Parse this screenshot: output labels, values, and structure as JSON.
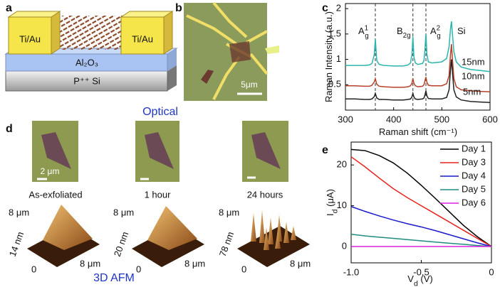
{
  "panel_labels": [
    "a",
    "b",
    "c",
    "d",
    "e"
  ],
  "schematic": {
    "contact_left": "Ti/Au",
    "contact_right": "Ti/Au",
    "dielectric": "Al₂O₃",
    "substrate": "P⁺⁺ Si"
  },
  "optical_image": {
    "scale_bar": "5μm"
  },
  "aging": {
    "top_title": "Optical",
    "scale_bar": "2 μm",
    "times": [
      "As-exfoliated",
      "1 hour",
      "24 hours"
    ],
    "afm_height": [
      "14 nm",
      "20 nm",
      "78 nm"
    ],
    "afm_size": "8 μm",
    "afm_origin": "0",
    "bottom_title": "3D AFM"
  },
  "chart_data": [
    {
      "type": "line",
      "legend": "inline",
      "xlabel": {
        "text": "Raman shift (cm⁻¹)"
      },
      "ylabel": {
        "text": "Raman Intensity (a.u.)"
      },
      "xlim": [
        300,
        600
      ],
      "xticks": [
        300,
        400,
        500,
        600
      ],
      "ylim": [
        0,
        2.1
      ],
      "yticks": [
        0.5,
        1,
        1.5,
        2
      ],
      "reference_lines": [
        362,
        440,
        467
      ],
      "peak_labels": [
        {
          "text": "A",
          "sup": "1",
          "sub": "g"
        },
        {
          "text": "B",
          "sub": "2g"
        },
        {
          "text": "A",
          "sup": "2",
          "sub": "g"
        },
        {
          "text": "Si"
        }
      ],
      "x": [
        300,
        320,
        340,
        350,
        355,
        360,
        362,
        365,
        370,
        380,
        400,
        420,
        430,
        435,
        438,
        440,
        442,
        445,
        450,
        460,
        463,
        465,
        467,
        469,
        472,
        480,
        500,
        510,
        515,
        518,
        520,
        522,
        525,
        530,
        540,
        560,
        580,
        600
      ],
      "series": [
        {
          "name": "15nm",
          "color": "#2bb5ae",
          "values": [
            0.88,
            0.88,
            0.88,
            0.89,
            0.92,
            1.1,
            1.4,
            0.98,
            0.9,
            0.88,
            0.87,
            0.87,
            0.89,
            0.93,
            1.1,
            1.45,
            1.05,
            0.93,
            0.9,
            0.92,
            0.98,
            1.2,
            1.5,
            1.1,
            0.95,
            0.93,
            0.95,
            1.02,
            1.25,
            1.6,
            1.75,
            1.5,
            1.15,
            0.95,
            0.85,
            0.8,
            0.78,
            0.76
          ]
        },
        {
          "name": "10nm",
          "color": "#b5412a",
          "values": [
            0.48,
            0.48,
            0.47,
            0.47,
            0.49,
            0.56,
            0.62,
            0.51,
            0.47,
            0.46,
            0.45,
            0.45,
            0.46,
            0.48,
            0.53,
            0.62,
            0.53,
            0.48,
            0.46,
            0.47,
            0.5,
            0.58,
            0.65,
            0.55,
            0.49,
            0.48,
            0.48,
            0.52,
            0.68,
            1.1,
            1.3,
            1.0,
            0.62,
            0.46,
            0.4,
            0.38,
            0.37,
            0.36
          ]
        },
        {
          "name": "5nm",
          "color": "#222222",
          "values": [
            0.22,
            0.22,
            0.21,
            0.21,
            0.22,
            0.27,
            0.33,
            0.24,
            0.21,
            0.21,
            0.2,
            0.2,
            0.21,
            0.22,
            0.26,
            0.33,
            0.26,
            0.22,
            0.21,
            0.22,
            0.24,
            0.3,
            0.38,
            0.28,
            0.23,
            0.22,
            0.22,
            0.25,
            0.4,
            0.8,
            1.0,
            0.75,
            0.4,
            0.26,
            0.2,
            0.17,
            0.16,
            0.15
          ]
        }
      ]
    },
    {
      "type": "line",
      "legend": "upper right",
      "xlabel": {
        "text": "V",
        "sub": "d",
        "rest": " (V)"
      },
      "ylabel": {
        "text": "I",
        "sub": "d",
        "rest": " (μA)"
      },
      "xlim": [
        -1,
        0
      ],
      "xticks": [
        {
          "value": -1,
          "label": "-1.0"
        },
        -0.5,
        0
      ],
      "ylim": [
        -4,
        25.6
      ],
      "yticks": [
        0,
        10,
        20
      ],
      "x": [
        -1,
        -0.9,
        -0.8,
        -0.7,
        -0.6,
        -0.5,
        -0.4,
        -0.3,
        -0.2,
        -0.1,
        0
      ],
      "series": [
        {
          "name": "Day 1",
          "color": "#000000",
          "values": [
            23.8,
            23.5,
            22.3,
            20.5,
            18,
            15,
            11.8,
            8.5,
            5.2,
            2.4,
            0
          ]
        },
        {
          "name": "Day 3",
          "color": "#e8231f",
          "values": [
            22,
            19.5,
            16.8,
            14.2,
            12,
            10,
            8,
            6,
            4,
            2,
            0
          ]
        },
        {
          "name": "Day 4",
          "color": "#1a1acc",
          "values": [
            9.8,
            8.6,
            7.5,
            6.5,
            5.6,
            4.8,
            3.9,
            2.9,
            1.9,
            0.9,
            0
          ]
        },
        {
          "name": "Day 5",
          "color": "#1f8c80",
          "values": [
            3.0,
            2.6,
            2.3,
            2.0,
            1.7,
            1.4,
            1.1,
            0.8,
            0.55,
            0.25,
            0
          ]
        },
        {
          "name": "Day 6",
          "color": "#e020e0",
          "values": [
            0,
            0,
            0,
            0,
            0,
            0,
            0,
            0,
            0,
            0,
            0
          ]
        }
      ]
    }
  ]
}
